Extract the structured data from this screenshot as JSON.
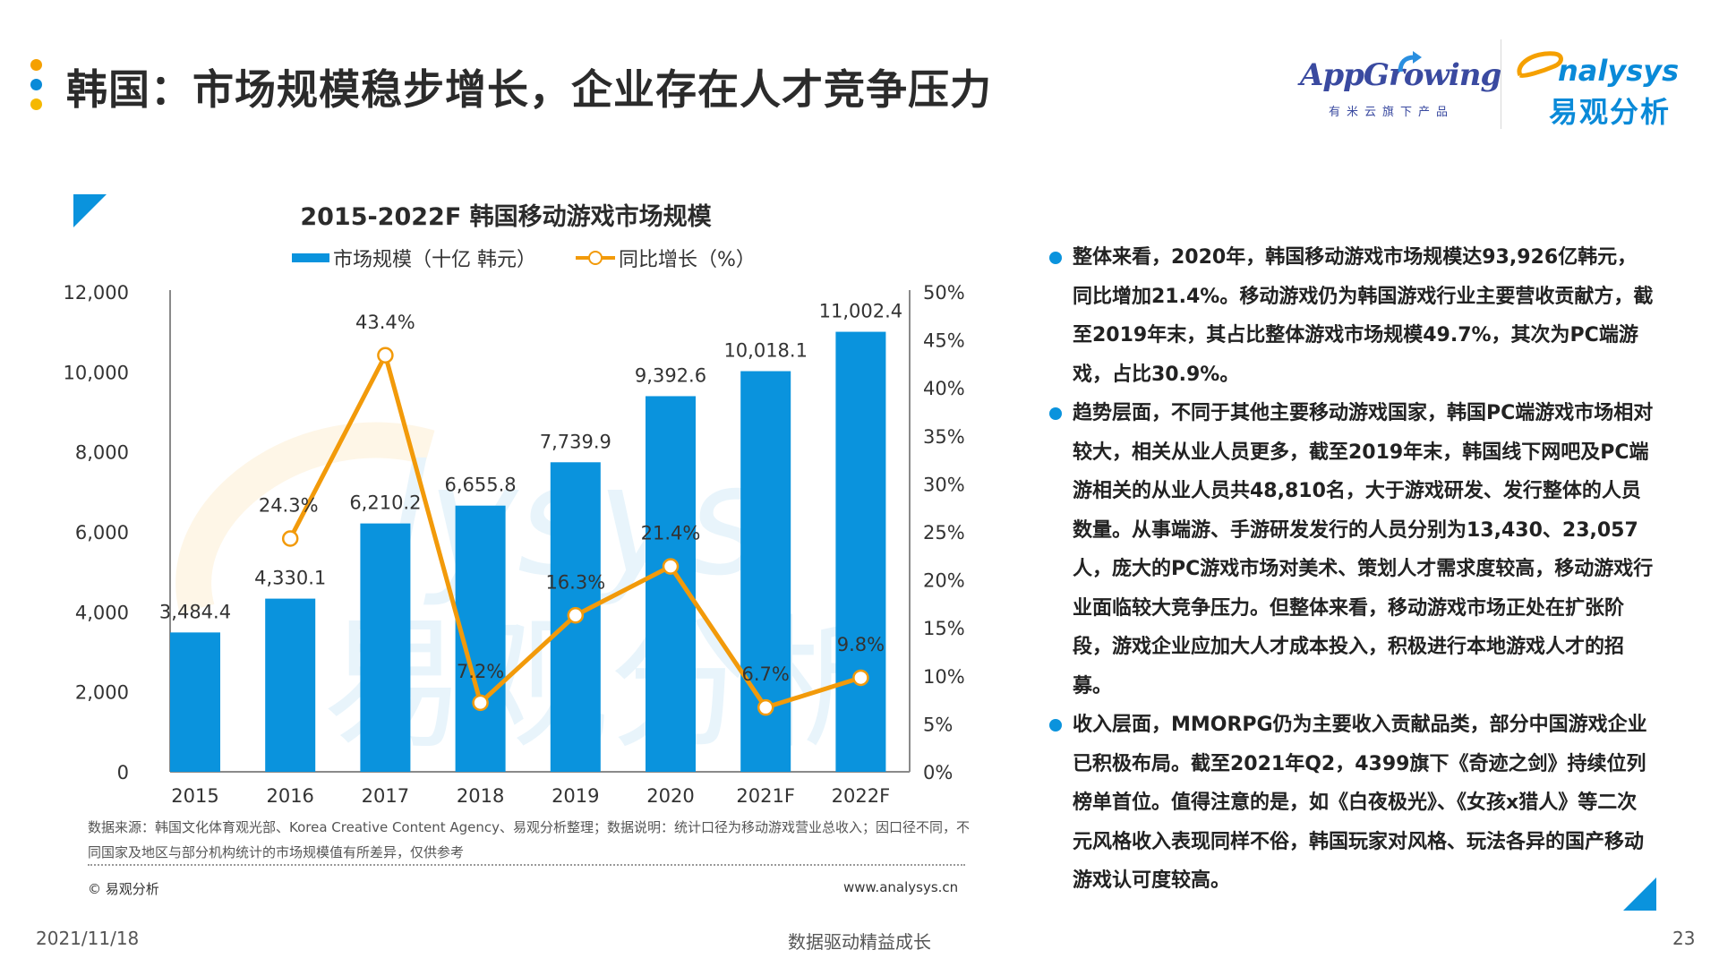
{
  "header": {
    "title": "韩国：市场规模稳步增长，企业存在人才竞争压力",
    "dot_colors": [
      "#f5a000",
      "#0a8ad8",
      "#f5b800"
    ]
  },
  "logos": {
    "appgrowing": {
      "word": "AppGrowing",
      "sub": "有米云旗下产品"
    },
    "analysys": {
      "word": "nalysys",
      "cn": "易观分析"
    }
  },
  "chart_data": {
    "type": "bar",
    "title": "2015-2022F 韩国移动游戏市场规模",
    "categories": [
      "2015",
      "2016",
      "2017",
      "2018",
      "2019",
      "2020",
      "2021F",
      "2022F"
    ],
    "series": [
      {
        "name": "市场规模（十亿 韩元）",
        "type": "bar",
        "axis": "left",
        "color": "#0a93dd",
        "values": [
          3484.4,
          4330.1,
          6210.2,
          6655.8,
          7739.9,
          9392.6,
          10018.1,
          11002.4
        ],
        "labels": [
          "3,484.4",
          "4,330.1",
          "6,210.2",
          "6,655.8",
          "7,739.9",
          "9,392.6",
          "10,018.1",
          "11,002.4"
        ]
      },
      {
        "name": "同比增长（%）",
        "type": "line",
        "axis": "right",
        "color": "#f29a0a",
        "values": [
          null,
          24.3,
          43.4,
          7.2,
          16.3,
          21.4,
          6.7,
          9.8
        ],
        "labels": [
          "",
          "24.3%",
          "43.4%",
          "7.2%",
          "16.3%",
          "21.4%",
          "6.7%",
          "9.8%"
        ]
      }
    ],
    "y_left": {
      "min": 0,
      "max": 12000,
      "ticks": [
        "0",
        "2,000",
        "4,000",
        "6,000",
        "8,000",
        "10,000",
        "12,000"
      ],
      "tick_values": [
        0,
        2000,
        4000,
        6000,
        8000,
        10000,
        12000
      ]
    },
    "y_right": {
      "min": 0,
      "max": 50,
      "ticks": [
        "0%",
        "5%",
        "10%",
        "15%",
        "20%",
        "25%",
        "30%",
        "35%",
        "40%",
        "45%",
        "50%"
      ],
      "tick_values": [
        0,
        5,
        10,
        15,
        20,
        25,
        30,
        35,
        40,
        45,
        50
      ]
    },
    "grid": false,
    "legend": "top-center"
  },
  "chart_footer": {
    "source": "数据来源：韩国文化体育观光部、Korea Creative Content Agency、易观分析整理；数据说明：统计口径为移动游戏营业总收入；因口径不同，不同国家及地区与部分机构统计的市场规模值有所差异，仅供参考",
    "copyright": "© 易观分析",
    "website": "www.analysys.cn"
  },
  "panel": {
    "bullets": [
      "整体来看，2020年，韩国移动游戏市场规模达93,926亿韩元，同比增加21.4%。移动游戏仍为韩国游戏行业主要营收贡献方，截至2019年末，其占比整体游戏市场规模49.7%，其次为PC端游戏，占比30.9%。",
      "趋势层面，不同于其他主要移动游戏国家，韩国PC端游戏市场相对较大，相关从业人员更多，截至2019年末，韩国线下网吧及PC端游相关的从业人员共48,810名，大于游戏研发、发行整体的人员数量。从事端游、手游研发发行的人员分别为13,430、23,057人，庞大的PC游戏市场对美术、策划人才需求度较高，移动游戏行业面临较大竞争压力。但整体来看，移动游戏市场正处在扩张阶段，游戏企业应加大人才成本投入，积极进行本地游戏人才的招募。",
      "收入层面，MMORPG仍为主要收入贡献品类，部分中国游戏企业已积极布局。截至2021年Q2，4399旗下《奇迹之剑》持续位列榜单首位。值得注意的是，如《白夜极光》、《女孩x猎人》等二次元风格收入表现同样不俗，韩国玩家对风格、玩法各异的国产移动游戏认可度较高。"
    ]
  },
  "footer": {
    "date": "2021/11/18",
    "slogan": "数据驱动精益成长",
    "page_number": "23"
  }
}
